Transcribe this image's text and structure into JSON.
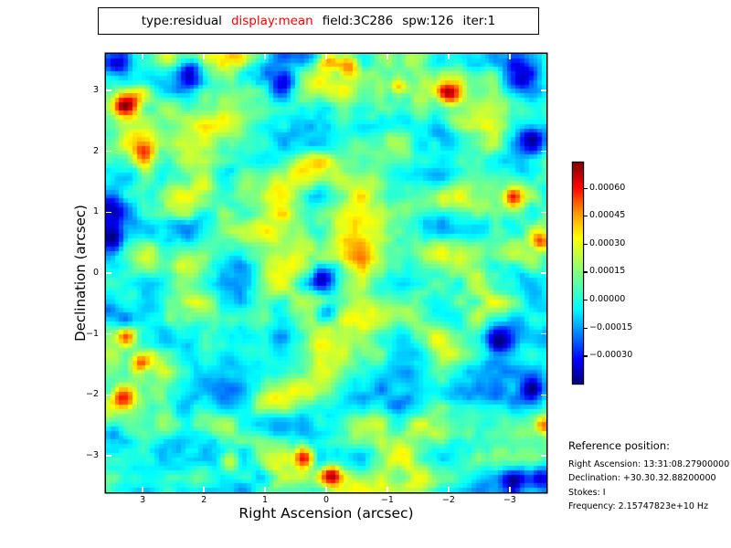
{
  "title_box": {
    "parts": [
      {
        "text": "type:residual",
        "color": "#000000"
      },
      {
        "text": "display:mean",
        "color": "#ff0000"
      },
      {
        "text": "field:3C286",
        "color": "#000000"
      },
      {
        "text": "spw:126",
        "color": "#000000"
      },
      {
        "text": "iter:1",
        "color": "#000000"
      }
    ]
  },
  "chart_data": {
    "type": "heatmap",
    "title": "type:residual  display:mean  field:3C286  spw:126  iter:1",
    "description": "Noise-like mean residual image for calibrator field 3C286, spw 126, iter 1; smooth random residuals around zero rendered with a jet colormap; scattered positive (red/orange) and negative (dark blue) blobs over a cyan-green background.",
    "xlabel": "Right Ascension (arcsec)",
    "ylabel": "Declination (arcsec)",
    "x_range": [
      3.6,
      -3.6
    ],
    "y_range": [
      3.6,
      -3.6
    ],
    "x_ticks": [
      3,
      2,
      1,
      0,
      -1,
      -2,
      -3
    ],
    "y_ticks": [
      3,
      2,
      1,
      0,
      -1,
      -2,
      -3
    ],
    "x_tick_labels": [
      "3",
      "2",
      "1",
      "0",
      "−1",
      "−2",
      "−3"
    ],
    "y_tick_labels": [
      "3",
      "2",
      "1",
      "0",
      "−1",
      "−2",
      "−3"
    ],
    "colormap": "jet",
    "value_range": [
      -0.00045,
      0.000735
    ],
    "colorbar_ticks": [
      0.0006,
      0.00045,
      0.0003,
      0.00015,
      0.0,
      -0.00015,
      -0.0003
    ],
    "colorbar_tick_labels": [
      "0.00060",
      "0.00045",
      "0.00030",
      "0.00015",
      "0.00000",
      "−0.00015",
      "−0.00030"
    ],
    "grid_size": 100,
    "noise": {
      "seed": 1234,
      "base": 5e-05,
      "scale": 0.00019,
      "octaves": [
        {
          "cx": 9.5,
          "cy": 6.5,
          "amp": 1.0
        },
        {
          "cx": 4.4,
          "cy": 4.0,
          "amp": 0.55
        },
        {
          "cx": 2.0,
          "cy": 2.0,
          "amp": 0.25
        }
      ]
    },
    "blobs": [
      [
        3.9,
        11.0,
        0.00058,
        1.9
      ],
      [
        8.0,
        8.5,
        0.00025,
        1.8
      ],
      [
        7.9,
        20.9,
        0.00035,
        1.7
      ],
      [
        8.5,
        24.0,
        0.0004,
        1.7
      ],
      [
        4.4,
        63.9,
        0.00035,
        1.5
      ],
      [
        7.3,
        70.1,
        0.0003,
        1.5
      ],
      [
        54.5,
        2.0,
        0.00045,
        1.8
      ],
      [
        50.0,
        1.0,
        0.0004,
        1.6
      ],
      [
        65.8,
        6.7,
        0.0003,
        1.3
      ],
      [
        77.3,
        8.5,
        0.00048,
        1.7
      ],
      [
        92.1,
        32.0,
        0.00055,
        1.7
      ],
      [
        98.3,
        42.4,
        0.0004,
        1.5
      ],
      [
        3.7,
        78.1,
        0.00055,
        1.9
      ],
      [
        27.8,
        92.2,
        0.00042,
        1.7
      ],
      [
        44.5,
        91.7,
        0.00055,
        1.7
      ],
      [
        50.5,
        95.7,
        0.0005,
        1.5
      ],
      [
        99.2,
        84.3,
        0.00045,
        1.5
      ],
      [
        18.7,
        3.7,
        -0.00045,
        2.3
      ],
      [
        93.1,
        3.9,
        -0.00042,
        2.5
      ],
      [
        96.5,
        19.0,
        -0.00035,
        2.0
      ],
      [
        1.0,
        34.3,
        -0.0004,
        2.5
      ],
      [
        1.0,
        41.9,
        -0.00035,
        2.1
      ],
      [
        48.9,
        50.8,
        -0.00038,
        2.1
      ],
      [
        49.7,
        58.5,
        -0.00038,
        2.1
      ],
      [
        89.0,
        64.7,
        -0.0004,
        2.1
      ],
      [
        40.1,
        5.4,
        -0.0003,
        1.9
      ],
      [
        92.1,
        97.7,
        -0.00035,
        2.1
      ],
      [
        96.3,
        75.6,
        -0.00035,
        1.9
      ],
      [
        2.1,
        1.7,
        -0.00035,
        2.1
      ],
      [
        97.9,
        96.3,
        -0.0003,
        1.9
      ],
      [
        1.0,
        86.0,
        -0.0003,
        1.9
      ],
      [
        58.8,
        56.0,
        0.00018,
        12.5
      ],
      [
        44.3,
        25.0,
        0.0001,
        11.4
      ]
    ]
  },
  "reference": {
    "heading": "Reference position:",
    "lines": [
      "Right Ascension: 13:31:08.27900000",
      "Declination: +30.30.32.88200000",
      "Stokes: I",
      "Frequency: 2.15747823e+10 Hz"
    ]
  }
}
